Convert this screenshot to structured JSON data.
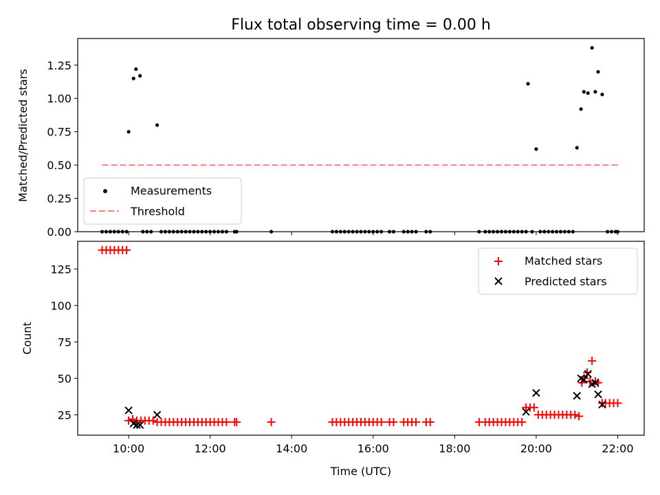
{
  "figure": {
    "title": "Flux total observing time = 0.00 h",
    "xlabel": "Time (UTC)",
    "x_ticks": [
      "10:00",
      "12:00",
      "14:00",
      "16:00",
      "18:00",
      "20:00",
      "22:00"
    ]
  },
  "chart_data": [
    {
      "type": "scatter",
      "panel": "top",
      "ylabel": "Matched/Predicted stars",
      "xlim_hours": [
        8.75,
        22.65
      ],
      "ylim": [
        0,
        1.45
      ],
      "y_ticks": [
        "0.00",
        "0.25",
        "0.50",
        "0.75",
        "1.00",
        "1.25"
      ],
      "legend_position": "lower-left",
      "series": [
        {
          "name": "Measurements",
          "marker": "dot",
          "color": "#000000",
          "x": [
            10.0,
            10.12,
            10.18,
            10.28,
            10.7,
            19.8,
            20.0,
            21.0,
            21.1,
            21.17,
            21.27,
            21.37,
            21.45,
            21.52,
            21.62,
            9.35,
            9.45,
            9.55,
            9.65,
            9.75,
            9.85,
            9.95,
            10.35,
            10.45,
            10.55,
            10.8,
            10.9,
            11.0,
            11.1,
            11.2,
            11.3,
            11.4,
            11.5,
            11.6,
            11.7,
            11.8,
            11.9,
            12.0,
            12.1,
            12.2,
            12.3,
            12.4,
            12.6,
            12.65,
            13.5,
            15.0,
            15.1,
            15.2,
            15.3,
            15.4,
            15.5,
            15.6,
            15.7,
            15.8,
            15.9,
            16.0,
            16.1,
            16.2,
            16.4,
            16.5,
            16.75,
            16.85,
            16.95,
            17.05,
            17.3,
            17.4,
            18.6,
            18.75,
            18.85,
            18.95,
            19.05,
            19.15,
            19.25,
            19.35,
            19.45,
            19.55,
            19.65,
            19.75,
            19.9,
            20.1,
            20.2,
            20.3,
            20.4,
            20.5,
            20.6,
            20.7,
            20.8,
            20.9,
            21.75,
            21.85,
            21.95,
            22.0
          ],
          "y": [
            0.75,
            1.15,
            1.22,
            1.17,
            0.8,
            1.11,
            0.62,
            0.63,
            0.92,
            1.05,
            1.04,
            1.38,
            1.05,
            1.2,
            1.03,
            0,
            0,
            0,
            0,
            0,
            0,
            0,
            0,
            0,
            0,
            0,
            0,
            0,
            0,
            0,
            0,
            0,
            0,
            0,
            0,
            0,
            0,
            0,
            0,
            0,
            0,
            0,
            0,
            0,
            0,
            0,
            0,
            0,
            0,
            0,
            0,
            0,
            0,
            0,
            0,
            0,
            0,
            0,
            0,
            0,
            0,
            0,
            0,
            0,
            0,
            0,
            0,
            0,
            0,
            0,
            0,
            0,
            0,
            0,
            0,
            0,
            0,
            0,
            0,
            0,
            0,
            0,
            0,
            0,
            0,
            0,
            0,
            0,
            0,
            0,
            0,
            0
          ]
        },
        {
          "name": "Threshold",
          "type": "line",
          "style": "dashed",
          "color": "#ff7f7f",
          "x": [
            9.35,
            22.05
          ],
          "y": [
            0.5,
            0.5
          ]
        }
      ]
    },
    {
      "type": "scatter",
      "panel": "bottom",
      "ylabel": "Count",
      "xlim_hours": [
        8.75,
        22.65
      ],
      "ylim": [
        11,
        144
      ],
      "y_ticks": [
        "25",
        "50",
        "75",
        "100",
        "125"
      ],
      "legend_position": "top-right",
      "series": [
        {
          "name": "Matched stars",
          "marker": "plus",
          "color": "#ff0000",
          "x": [
            9.35,
            9.45,
            9.55,
            9.65,
            9.75,
            9.85,
            9.95,
            10.0,
            10.1,
            10.2,
            10.3,
            10.4,
            10.5,
            10.6,
            10.7,
            10.8,
            10.9,
            11.0,
            11.1,
            11.2,
            11.3,
            11.4,
            11.5,
            11.6,
            11.7,
            11.8,
            11.9,
            12.0,
            12.1,
            12.2,
            12.3,
            12.4,
            12.6,
            12.65,
            13.5,
            15.0,
            15.1,
            15.2,
            15.3,
            15.4,
            15.5,
            15.6,
            15.7,
            15.8,
            15.9,
            16.0,
            16.1,
            16.2,
            16.4,
            16.5,
            16.75,
            16.85,
            16.95,
            17.05,
            17.3,
            17.4,
            18.6,
            18.75,
            18.85,
            18.95,
            19.05,
            19.15,
            19.25,
            19.35,
            19.45,
            19.55,
            19.65,
            19.75,
            19.85,
            19.95,
            20.05,
            20.15,
            20.25,
            20.35,
            20.45,
            20.55,
            20.65,
            20.75,
            20.85,
            20.95,
            21.05,
            21.12,
            21.18,
            21.25,
            21.32,
            21.37,
            21.45,
            21.52,
            21.62,
            21.7,
            21.8,
            21.9,
            22.0
          ],
          "y": [
            138,
            138,
            138,
            138,
            138,
            138,
            138,
            21,
            22,
            21,
            21,
            21,
            21,
            21,
            20,
            20,
            20,
            20,
            20,
            20,
            20,
            20,
            20,
            20,
            20,
            20,
            20,
            20,
            20,
            20,
            20,
            20,
            20,
            20,
            20,
            20,
            20,
            20,
            20,
            20,
            20,
            20,
            20,
            20,
            20,
            20,
            20,
            20,
            20,
            20,
            20,
            20,
            20,
            20,
            20,
            20,
            20,
            20,
            20,
            20,
            20,
            20,
            20,
            20,
            20,
            20,
            20,
            30,
            30,
            30,
            25,
            25,
            25,
            25,
            25,
            25,
            25,
            25,
            25,
            25,
            24,
            47,
            50,
            54,
            48,
            62,
            48,
            47,
            33,
            33,
            33,
            33,
            33
          ]
        },
        {
          "name": "Predicted stars",
          "marker": "x",
          "color": "#000000",
          "x": [
            10.0,
            10.12,
            10.2,
            10.28,
            10.7,
            19.75,
            20.0,
            21.0,
            21.1,
            21.17,
            21.27,
            21.37,
            21.45,
            21.52,
            21.62
          ],
          "y": [
            28,
            19,
            18,
            18,
            25,
            27,
            40,
            38,
            50,
            49,
            53,
            46,
            47,
            39,
            32
          ]
        }
      ]
    }
  ]
}
